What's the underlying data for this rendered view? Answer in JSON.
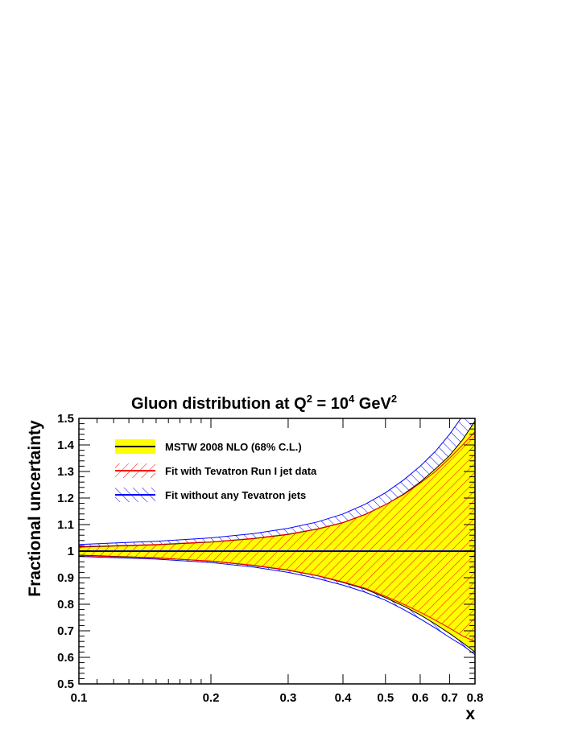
{
  "chart_data": {
    "type": "area",
    "title": {
      "main": "Gluon distribution at Q",
      "q_exp": "2",
      "mid": " = 10",
      "ten_exp": "4",
      "unit": " GeV",
      "unit_exp": "2"
    },
    "xlabel": "x",
    "ylabel": "Fractional uncertainty",
    "xscale": "log",
    "xlim": [
      0.1,
      0.8
    ],
    "ylim": [
      0.5,
      1.5
    ],
    "x_ticks": [
      {
        "value": 0.1,
        "label": "0.1"
      },
      {
        "value": 0.2,
        "label": "0.2"
      },
      {
        "value": 0.3,
        "label": "0.3"
      },
      {
        "value": 0.4,
        "label": "0.4"
      },
      {
        "value": 0.5,
        "label": "0.5"
      },
      {
        "value": 0.6,
        "label": "0.6"
      },
      {
        "value": 0.7,
        "label": "0.7"
      },
      {
        "value": 0.8,
        "label": "0.8"
      }
    ],
    "y_ticks": [
      {
        "value": 0.5,
        "label": "0.5"
      },
      {
        "value": 0.6,
        "label": "0.6"
      },
      {
        "value": 0.7,
        "label": "0.7"
      },
      {
        "value": 0.8,
        "label": "0.8"
      },
      {
        "value": 0.9,
        "label": "0.9"
      },
      {
        "value": 1.0,
        "label": "1"
      },
      {
        "value": 1.1,
        "label": "1.1"
      },
      {
        "value": 1.2,
        "label": "1.2"
      },
      {
        "value": 1.3,
        "label": "1.3"
      },
      {
        "value": 1.4,
        "label": "1.4"
      },
      {
        "value": 1.5,
        "label": "1.5"
      }
    ],
    "x": [
      0.1,
      0.15,
      0.2,
      0.25,
      0.3,
      0.35,
      0.4,
      0.45,
      0.5,
      0.55,
      0.6,
      0.65,
      0.7,
      0.75,
      0.8
    ],
    "series": [
      {
        "name": "MSTW 2008 NLO (68% C.L.)",
        "style": "solid-fill",
        "fill_color": "#ffff00",
        "line_color": "#000000",
        "central": [
          1,
          1,
          1,
          1,
          1,
          1,
          1,
          1,
          1,
          1,
          1,
          1,
          1,
          1,
          1
        ],
        "upper": [
          1.015,
          1.024,
          1.034,
          1.047,
          1.063,
          1.083,
          1.107,
          1.138,
          1.175,
          1.215,
          1.26,
          1.31,
          1.36,
          1.42,
          1.49
        ],
        "lower": [
          0.985,
          0.975,
          0.962,
          0.946,
          0.928,
          0.907,
          0.882,
          0.857,
          0.825,
          0.793,
          0.76,
          0.725,
          0.69,
          0.655,
          0.62
        ]
      },
      {
        "name": "Fit with Tevatron Run I jet data",
        "style": "hatch",
        "hatch_color": "#ff0000",
        "line_color": "#ff0000",
        "upper": [
          1.017,
          1.025,
          1.035,
          1.048,
          1.064,
          1.084,
          1.108,
          1.139,
          1.175,
          1.213,
          1.256,
          1.3,
          1.35,
          1.4,
          1.45
        ],
        "lower": [
          0.983,
          0.974,
          0.963,
          0.947,
          0.929,
          0.908,
          0.884,
          0.86,
          0.83,
          0.8,
          0.77,
          0.74,
          0.71,
          0.68,
          0.66
        ]
      },
      {
        "name": "Fit without any Tevatron jets",
        "style": "hatch",
        "hatch_color": "#0000ff",
        "line_color": "#0000ff",
        "upper": [
          1.025,
          1.037,
          1.05,
          1.066,
          1.086,
          1.11,
          1.14,
          1.177,
          1.22,
          1.268,
          1.32,
          1.376,
          1.44,
          1.51,
          1.59
        ],
        "lower": [
          0.98,
          0.97,
          0.957,
          0.94,
          0.92,
          0.897,
          0.872,
          0.845,
          0.815,
          0.78,
          0.745,
          0.71,
          0.675,
          0.645,
          0.61
        ]
      }
    ],
    "legend": {
      "position": "top-left",
      "entries": [
        "MSTW 2008 NLO (68% C.L.)",
        "Fit with Tevatron Run I jet data",
        "Fit without any Tevatron jets"
      ]
    },
    "grid": false
  }
}
